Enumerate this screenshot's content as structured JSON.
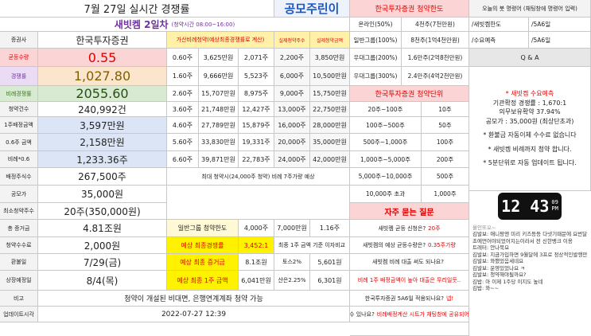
{
  "header": {
    "title": "7월 27일 실시간 경쟁률",
    "logo": "공모주린이",
    "company": "새빗켐 2일차",
    "hours": "(청약시간 08:00~16:00)"
  },
  "summary": {
    "rows": [
      [
        "증권사",
        "한국투자증권"
      ],
      [
        "균등수량",
        "0.55"
      ],
      [
        "경쟁률",
        "1,027.80"
      ],
      [
        "비례경쟁률",
        "2055.60"
      ],
      [
        "청약건수",
        "240,992건"
      ],
      [
        "1주배정금액",
        "3,597만원"
      ],
      [
        "0.6주 금액",
        "2,158만원"
      ],
      [
        "비례*0.6",
        "1,233.36주"
      ],
      [
        "배정주식수",
        "267,500주"
      ],
      [
        "공모가",
        "35,000원"
      ],
      [
        "최소청약주수",
        "20주(350,000원)"
      ],
      [
        "총 증거금",
        "4.81조원"
      ],
      [
        "청약수수료",
        "2,000원"
      ],
      [
        "환불일",
        "7/29(금)"
      ],
      [
        "상장예정일",
        "8/4(목)"
      ],
      [
        "비고",
        "청약이 개설된 비대면, 은행연계계좌 청약 가능"
      ],
      [
        "업데이트시각",
        "2022-07-27 12:39"
      ]
    ]
  },
  "calc": {
    "header": [
      "가산비례청약(예상최종경쟁률로 계산)",
      "실제청약주수",
      "실제청약금액"
    ],
    "rows": [
      [
        "0.60주",
        "3,625만원",
        "2,071주",
        "2,200주",
        "3,850만원"
      ],
      [
        "1.60주",
        "9,666만원",
        "5,523주",
        "6,000주",
        "10,500만원"
      ],
      [
        "2.60주",
        "15,707만원",
        "8,975주",
        "9,000주",
        "15,750만원"
      ],
      [
        "3.60주",
        "21,748만원",
        "12,427주",
        "13,000주",
        "22,750만원"
      ],
      [
        "4.60주",
        "27,789만원",
        "15,879주",
        "16,000주",
        "28,000만원"
      ],
      [
        "5.60주",
        "33,830만원",
        "19,331주",
        "20,000주",
        "35,000만원"
      ],
      [
        "6.60주",
        "39,871만원",
        "22,783주",
        "24,000주",
        "42,000만원"
      ]
    ],
    "note": "최대 청약시(24,000주 청약) 비례 7주가량 예상",
    "limit": [
      "일반그룹 청약한도",
      "4,000주",
      "7,000만원",
      "1.16주"
    ],
    "estimates": [
      [
        "예상 최종경쟁률",
        "3,452:1"
      ],
      [
        "예상 최종 증거금",
        "8.1조원"
      ],
      [
        "예상 최종 1주 금액",
        "6,041만원"
      ]
    ],
    "interest": {
      "title": "최종 1주 금액 기준 이자비교",
      "rows": [
        [
          "토스2%",
          "5,601원"
        ],
        [
          "산은2.25%",
          "6,301원"
        ]
      ]
    }
  },
  "limits": {
    "title": "한국투자증권 청약한도",
    "rows": [
      [
        "온라인(50%)",
        "4천주(7천만원)"
      ],
      [
        "일반그룹(100%)",
        "8천주(1억4천만원)"
      ],
      [
        "우대그룹(200%)",
        "1.6만주(2억8천만원)"
      ],
      [
        "우대그룹(300%)",
        "2.4만주(4억2천만원)"
      ]
    ]
  },
  "units": {
    "title": "한국투자증권 청약단위",
    "rows": [
      [
        "20주~100주",
        "10주"
      ],
      [
        "100주~500주",
        "50주"
      ],
      [
        "500주~1,000주",
        "100주"
      ],
      [
        "1,000주~5,000주",
        "200주"
      ],
      [
        "5,000주~10,000주",
        "500주"
      ],
      [
        "10,000주 초과",
        "1,000주"
      ]
    ]
  },
  "faq": {
    "title": "자주 묻는 질문",
    "items": [
      {
        "q": "새빗켐 균등 신청은?",
        "a": "20주"
      },
      {
        "q": "새빗켐의 예상 균등수량은?",
        "a": "0.35주가량"
      },
      {
        "q": "새빗켐 비례 대출 써도 되나요?"
      },
      {
        "a": "비례 1주 배정금액이 높아 대출은 무리일듯.."
      },
      {
        "q": "한국투자증권 5A6일 적용되나요?",
        "a": "넵!"
      },
      {
        "q": "몇주 받을수 있나요?",
        "a": "비례배정계산 시트가 채팅창에 공유되어있습니다."
      }
    ]
  },
  "bot": {
    "title": "오늘의 봇 명령어 (채팅창에 명령어 입력)",
    "commands": [
      [
        "/새빗켐한도",
        "/5A6일"
      ],
      [
        "/수요예측",
        "/5A6일"
      ]
    ],
    "qa": "Q & A",
    "notes": [
      "* 새빗켐 수요예측",
      "기관확정 경쟁률 : 1,670:1",
      "의무보유확약 37.94%",
      "공모가 : 35,000원 (최상단초과)",
      "* 환불금 자동이체 수수료 없습니다",
      "* 새빗켐 비례까지 청약 합니다.",
      "* 5분단위로 자동 업데이트 됩니다."
    ],
    "clock": {
      "time": "12 43",
      "sec": "09",
      "ampm": "PM"
    },
    "chat": [
      "올인또오~",
      "김발보: 애니팡앤 미리 키즈등등 다넷기때문에 요번달초에먼어야되었어지는이라서 전 신한뱅크 이용",
      "트레터: 안나북요",
      "김발보: 지금가입하면 9월달에 3프로 정상적인발행만",
      "김발보: 와했었음세네요",
      "김발보: 운영있었나요 ㅋ",
      "김발보: 청약해야될까요?",
      "김밥: 아 이제 1주당 이지도 높네",
      "김밥: 와~~"
    ]
  }
}
